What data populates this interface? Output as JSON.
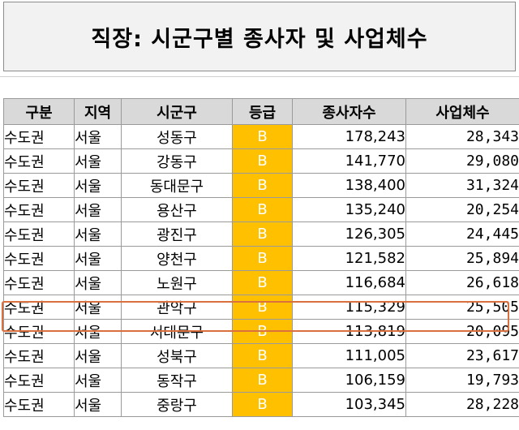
{
  "title": "직장: 시군구별 종사자 및 사업체수",
  "headers": [
    "구분",
    "지역",
    "시군구",
    "등급",
    "종사자수",
    "사업체수"
  ],
  "rows": [
    {
      "region": "수도권",
      "area": "서울",
      "city": "성동구",
      "grade": "B",
      "workers": "178,243",
      "businesses": "28,343"
    },
    {
      "region": "수도권",
      "area": "서울",
      "city": "강동구",
      "grade": "B",
      "workers": "141,770",
      "businesses": "29,080"
    },
    {
      "region": "수도권",
      "area": "서울",
      "city": "동대문구",
      "grade": "B",
      "workers": "138,400",
      "businesses": "31,324"
    },
    {
      "region": "수도권",
      "area": "서울",
      "city": "용산구",
      "grade": "B",
      "workers": "135,240",
      "businesses": "20,254"
    },
    {
      "region": "수도권",
      "area": "서울",
      "city": "광진구",
      "grade": "B",
      "workers": "126,305",
      "businesses": "24,445"
    },
    {
      "region": "수도권",
      "area": "서울",
      "city": "양천구",
      "grade": "B",
      "workers": "121,582",
      "businesses": "25,894"
    },
    {
      "region": "수도권",
      "area": "서울",
      "city": "노원구",
      "grade": "B",
      "workers": "116,684",
      "businesses": "26,618"
    },
    {
      "region": "수도권",
      "area": "서울",
      "city": "관악구",
      "grade": "B",
      "workers": "115,329",
      "businesses": "25,505"
    },
    {
      "region": "수도권",
      "area": "서울",
      "city": "서대문구",
      "grade": "B",
      "workers": "113,819",
      "businesses": "20,095"
    },
    {
      "region": "수도권",
      "area": "서울",
      "city": "성북구",
      "grade": "B",
      "workers": "111,005",
      "businesses": "23,617"
    },
    {
      "region": "수도권",
      "area": "서울",
      "city": "동작구",
      "grade": "B",
      "workers": "106,159",
      "businesses": "19,793"
    },
    {
      "region": "수도권",
      "area": "서울",
      "city": "중랑구",
      "grade": "B",
      "workers": "103,345",
      "businesses": "28,228"
    }
  ],
  "colors": {
    "grade_fill": "#ffc000",
    "header_fill": "#d9d9d9",
    "title_fill": "#f2f2f2",
    "highlight_border": "#d9703e"
  }
}
